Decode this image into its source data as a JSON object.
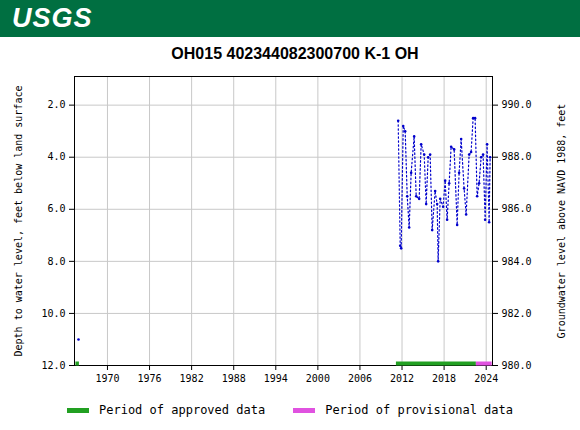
{
  "banner": "USGS",
  "chart_data": {
    "type": "line",
    "title": "OH015 402344082300700 K-1 OH",
    "ylabel": "Depth to water level, feet below land surface",
    "y2label": "Groundwater level above NAVD 1988, feet",
    "x": [
      1965.87,
      1966.0,
      2011.45,
      2011.74,
      2011.88,
      2012.17,
      2012.45,
      2012.74,
      2013.02,
      2013.3,
      2013.73,
      2014.02,
      2014.44,
      2014.73,
      2015.16,
      2015.44,
      2015.73,
      2016.01,
      2016.3,
      2016.72,
      2017.01,
      2017.15,
      2017.44,
      2017.86,
      2018.15,
      2018.43,
      2018.72,
      2019.0,
      2019.43,
      2019.86,
      2020.14,
      2020.43,
      2020.85,
      2021.14,
      2021.57,
      2021.85,
      2022.14,
      2022.42,
      2022.71,
      2022.99,
      2023.28,
      2023.56,
      2023.85,
      2024.13,
      2024.42,
      2024.56
    ],
    "series": [
      {
        "color": "#0000cc",
        "line_style": "dotted",
        "marker": "point",
        "values": [
          11.0,
          null,
          2.6,
          7.4,
          7.5,
          2.8,
          3.0,
          5.5,
          6.7,
          4.6,
          3.2,
          5.5,
          5.6,
          3.5,
          3.9,
          5.8,
          4.0,
          3.9,
          6.8,
          5.3,
          5.8,
          8.0,
          5.6,
          5.9,
          4.9,
          6.4,
          5.0,
          3.6,
          3.7,
          6.6,
          4.6,
          3.3,
          5.2,
          6.2,
          3.9,
          3.8,
          2.5,
          2.5,
          5.5,
          5.0,
          4.0,
          3.9,
          6.4,
          3.5,
          6.5,
          4.0
        ]
      }
    ],
    "xlim": [
      1965.3,
      2024.9
    ],
    "xticks": [
      1970,
      1976,
      1982,
      1988,
      1994,
      2000,
      2006,
      2012,
      2018,
      2024
    ],
    "ylim": [
      12.0,
      0.9
    ],
    "yticks": [
      {
        "value": 2,
        "label": "2.0"
      },
      {
        "value": 4,
        "label": "4.0"
      },
      {
        "value": 6,
        "label": "6.0"
      },
      {
        "value": 8,
        "label": "8.0"
      },
      {
        "value": 10,
        "label": "10.0"
      },
      {
        "value": 12,
        "label": "12.0"
      }
    ],
    "y2lim": [
      980.0,
      991.1
    ],
    "y2ticks": [
      {
        "value": 980,
        "label": "980.0"
      },
      {
        "value": 982,
        "label": "982.0"
      },
      {
        "value": 984,
        "label": "984.0"
      },
      {
        "value": 986,
        "label": "986.0"
      },
      {
        "value": 988,
        "label": "988.0"
      },
      {
        "value": 990,
        "label": "990.0"
      }
    ],
    "grid": true,
    "legend": "bottom",
    "periods": [
      {
        "name": "Period of approved data",
        "color": "#22a022",
        "ranges": [
          [
            1965.5,
            1966.0
          ],
          [
            2011.2,
            2022.6
          ]
        ]
      },
      {
        "name": "Period of provisional data",
        "color": "#e052e0",
        "ranges": [
          [
            2022.6,
            2024.85
          ]
        ]
      }
    ]
  }
}
